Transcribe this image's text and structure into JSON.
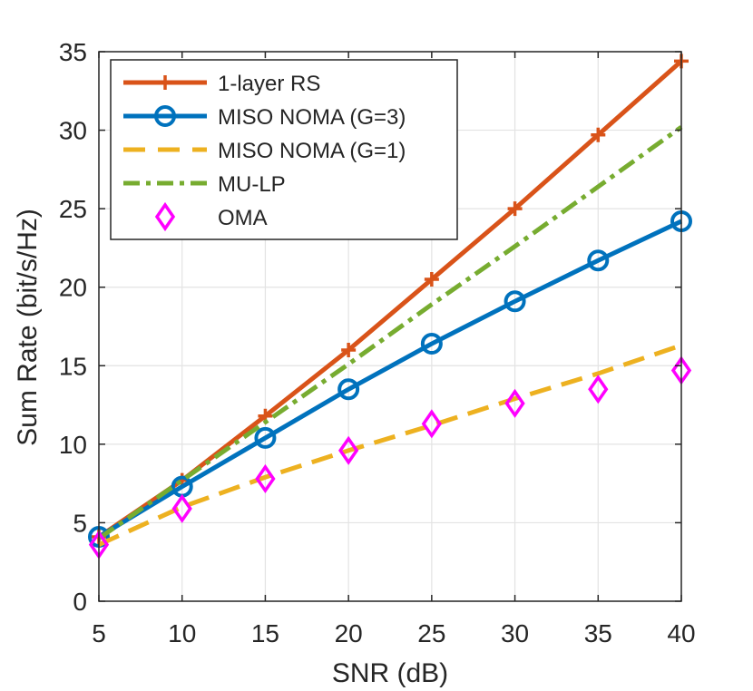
{
  "chart_data": {
    "type": "line",
    "title": "",
    "xlabel": "SNR (dB)",
    "ylabel": "Sum Rate (bit/s/Hz)",
    "x": [
      5,
      10,
      15,
      20,
      25,
      30,
      35,
      40
    ],
    "xlim": [
      5,
      40
    ],
    "ylim": [
      0,
      35
    ],
    "xticks": [
      5,
      10,
      15,
      20,
      25,
      30,
      35,
      40
    ],
    "yticks": [
      0,
      5,
      10,
      15,
      20,
      25,
      30,
      35
    ],
    "grid": true,
    "legend_position": "top-left",
    "series": [
      {
        "name": "1-layer RS",
        "color": "#d95319",
        "style": "solid",
        "marker": "plus",
        "values": [
          4.1,
          7.7,
          11.8,
          16.0,
          20.5,
          25.0,
          29.7,
          34.4
        ]
      },
      {
        "name": "MISO NOMA (G=3)",
        "color": "#0072bd",
        "style": "solid",
        "marker": "circle",
        "values": [
          4.1,
          7.3,
          10.4,
          13.5,
          16.4,
          19.1,
          21.7,
          24.2
        ]
      },
      {
        "name": "MISO NOMA (G=1)",
        "color": "#edb120",
        "style": "dashed",
        "marker": "none",
        "values": [
          3.6,
          6.0,
          7.9,
          9.6,
          11.2,
          12.9,
          14.5,
          16.3
        ]
      },
      {
        "name": "MU-LP",
        "color": "#77ac30",
        "style": "dashdot",
        "marker": "none",
        "values": [
          4.0,
          7.7,
          11.4,
          15.1,
          18.9,
          22.6,
          26.4,
          30.2
        ]
      },
      {
        "name": "OMA",
        "color": "#ff00ff",
        "style": "none",
        "marker": "diamond",
        "values": [
          3.6,
          5.9,
          7.8,
          9.6,
          11.3,
          12.6,
          13.5,
          14.7
        ]
      }
    ]
  }
}
